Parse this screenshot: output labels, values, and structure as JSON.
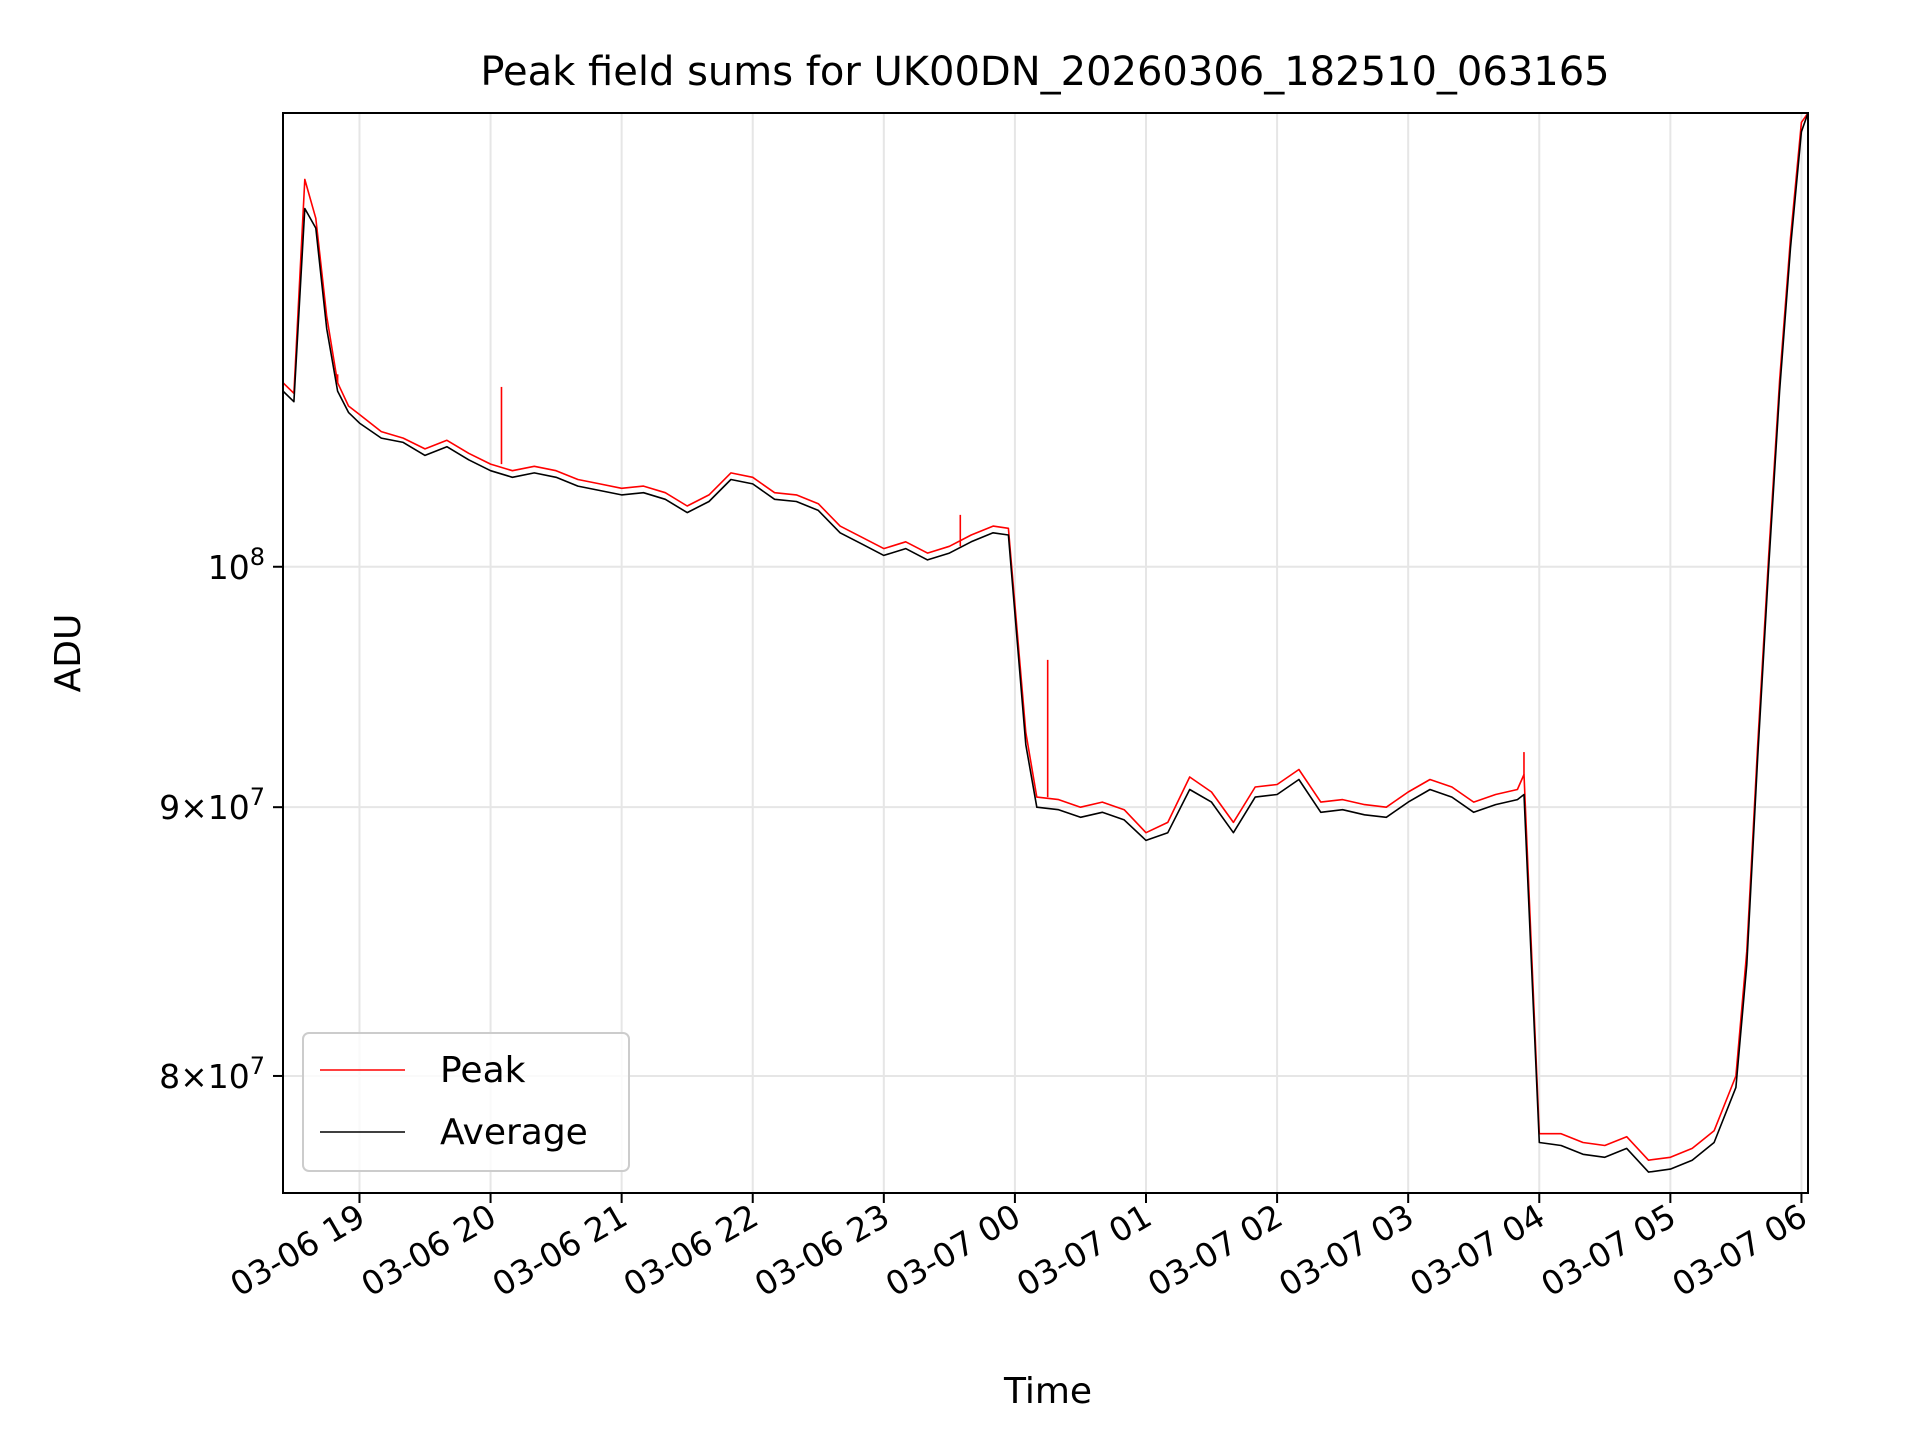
{
  "chart_data": {
    "type": "line",
    "title": "Peak field sums for UK00DN_20260306_182510_063165",
    "xlabel": "Time",
    "ylabel": "ADU",
    "yscale": "log",
    "grid": true,
    "legend_position": "lower-left",
    "x_ticks": [
      "03-06 19",
      "03-06 20",
      "03-06 21",
      "03-06 22",
      "03-06 23",
      "03-07 00",
      "03-07 01",
      "03-07 02",
      "03-07 03",
      "03-07 04",
      "03-07 05",
      "03-07 06"
    ],
    "x_tick_times": [
      "2026-03-06 19:00",
      "2026-03-06 20:00",
      "2026-03-06 21:00",
      "2026-03-06 22:00",
      "2026-03-06 23:00",
      "2026-03-07 00:00",
      "2026-03-07 01:00",
      "2026-03-07 02:00",
      "2026-03-07 03:00",
      "2026-03-07 04:00",
      "2026-03-07 05:00",
      "2026-03-07 06:00"
    ],
    "xlim": [
      "2026-03-06 18:25",
      "2026-03-07 06:03"
    ],
    "ylim": [
      76000000,
      122000000
    ],
    "y_ticks": [
      {
        "value": 80000000,
        "mantissa": "8",
        "base": "10",
        "exponent": "7"
      },
      {
        "value": 90000000,
        "mantissa": "9",
        "base": "10",
        "exponent": "7"
      },
      {
        "value": 100000000,
        "mantissa": "",
        "base": "10",
        "exponent": "8"
      }
    ],
    "x": [
      "2026-03-06 18:25",
      "2026-03-06 18:30",
      "2026-03-06 18:35",
      "2026-03-06 18:40",
      "2026-03-06 18:45",
      "2026-03-06 18:50",
      "2026-03-06 18:55",
      "2026-03-06 19:00",
      "2026-03-06 19:10",
      "2026-03-06 19:20",
      "2026-03-06 19:30",
      "2026-03-06 19:40",
      "2026-03-06 19:50",
      "2026-03-06 20:00",
      "2026-03-06 20:10",
      "2026-03-06 20:20",
      "2026-03-06 20:30",
      "2026-03-06 20:40",
      "2026-03-06 20:50",
      "2026-03-06 21:00",
      "2026-03-06 21:10",
      "2026-03-06 21:20",
      "2026-03-06 21:30",
      "2026-03-06 21:40",
      "2026-03-06 21:50",
      "2026-03-06 22:00",
      "2026-03-06 22:10",
      "2026-03-06 22:20",
      "2026-03-06 22:30",
      "2026-03-06 22:40",
      "2026-03-06 22:50",
      "2026-03-06 23:00",
      "2026-03-06 23:10",
      "2026-03-06 23:20",
      "2026-03-06 23:30",
      "2026-03-06 23:40",
      "2026-03-06 23:50",
      "2026-03-06 23:57",
      "2026-03-07 00:05",
      "2026-03-07 00:10",
      "2026-03-07 00:20",
      "2026-03-07 00:30",
      "2026-03-07 00:40",
      "2026-03-07 00:50",
      "2026-03-07 01:00",
      "2026-03-07 01:10",
      "2026-03-07 01:20",
      "2026-03-07 01:30",
      "2026-03-07 01:40",
      "2026-03-07 01:50",
      "2026-03-07 02:00",
      "2026-03-07 02:10",
      "2026-03-07 02:20",
      "2026-03-07 02:30",
      "2026-03-07 02:40",
      "2026-03-07 02:50",
      "2026-03-07 03:00",
      "2026-03-07 03:10",
      "2026-03-07 03:20",
      "2026-03-07 03:30",
      "2026-03-07 03:40",
      "2026-03-07 03:50",
      "2026-03-07 03:53",
      "2026-03-07 04:00",
      "2026-03-07 04:10",
      "2026-03-07 04:20",
      "2026-03-07 04:30",
      "2026-03-07 04:40",
      "2026-03-07 04:50",
      "2026-03-07 05:00",
      "2026-03-07 05:10",
      "2026-03-07 05:20",
      "2026-03-07 05:30",
      "2026-03-07 05:35",
      "2026-03-07 05:40",
      "2026-03-07 05:45",
      "2026-03-07 05:50",
      "2026-03-07 05:55",
      "2026-03-07 06:00",
      "2026-03-07 06:03"
    ],
    "series": [
      {
        "name": "Average",
        "color": "#000000",
        "values": [
          108000000,
          107500000,
          117000000,
          116000000,
          111000000,
          108000000,
          107000000,
          106500000,
          105800000,
          105600000,
          105000000,
          105400000,
          104800000,
          104300000,
          104000000,
          104200000,
          104000000,
          103600000,
          103400000,
          103200000,
          103300000,
          103000000,
          102400000,
          102900000,
          103900000,
          103700000,
          103000000,
          102900000,
          102500000,
          101500000,
          101000000,
          100500000,
          100800000,
          100300000,
          100600000,
          101100000,
          101500000,
          101400000,
          92500000,
          90000000,
          89900000,
          89600000,
          89800000,
          89500000,
          88700000,
          89000000,
          90700000,
          90200000,
          89000000,
          90400000,
          90500000,
          91100000,
          89800000,
          89900000,
          89700000,
          89600000,
          90200000,
          90700000,
          90400000,
          89800000,
          90100000,
          90300000,
          90500000,
          77700000,
          77600000,
          77300000,
          77200000,
          77500000,
          76700000,
          76800000,
          77100000,
          77700000,
          79600000,
          84000000,
          92000000,
          100000000,
          108000000,
          115000000,
          121000000,
          122000000
        ]
      },
      {
        "name": "Peak",
        "color": "#ff0000",
        "values": [
          108400000,
          107900000,
          118500000,
          116500000,
          111600000,
          108400000,
          107300000,
          106900000,
          106100000,
          105800000,
          105300000,
          105700000,
          105100000,
          104600000,
          104300000,
          104500000,
          104300000,
          103900000,
          103700000,
          103500000,
          103600000,
          103300000,
          102700000,
          103200000,
          104200000,
          104000000,
          103300000,
          103200000,
          102800000,
          101800000,
          101300000,
          100800000,
          101100000,
          100600000,
          100900000,
          101400000,
          101800000,
          101700000,
          93000000,
          90400000,
          90300000,
          90000000,
          90200000,
          89900000,
          89000000,
          89400000,
          91200000,
          90600000,
          89400000,
          90800000,
          90900000,
          91500000,
          90200000,
          90300000,
          90100000,
          90000000,
          90600000,
          91100000,
          90800000,
          90200000,
          90500000,
          90700000,
          91300000,
          78000000,
          78000000,
          77700000,
          77600000,
          77900000,
          77100000,
          77200000,
          77500000,
          78100000,
          80000000,
          84500000,
          92500000,
          100500000,
          108500000,
          115500000,
          121500000,
          122000000
        ]
      }
    ],
    "annotations": [
      {
        "series": "Peak",
        "x": "2026-03-06 20:05",
        "value": 108200000
      },
      {
        "series": "Peak",
        "x": "2026-03-06 19:45",
        "value": 105700000
      },
      {
        "series": "Peak",
        "x": "2026-03-06 18:50",
        "value": 108800000
      },
      {
        "series": "Peak",
        "x": "2026-03-07 00:15",
        "value": 96000000
      },
      {
        "series": "Peak",
        "x": "2026-03-07 03:53",
        "value": 92200000
      },
      {
        "series": "Peak",
        "x": "2026-03-06 23:35",
        "value": 102300000
      }
    ]
  }
}
